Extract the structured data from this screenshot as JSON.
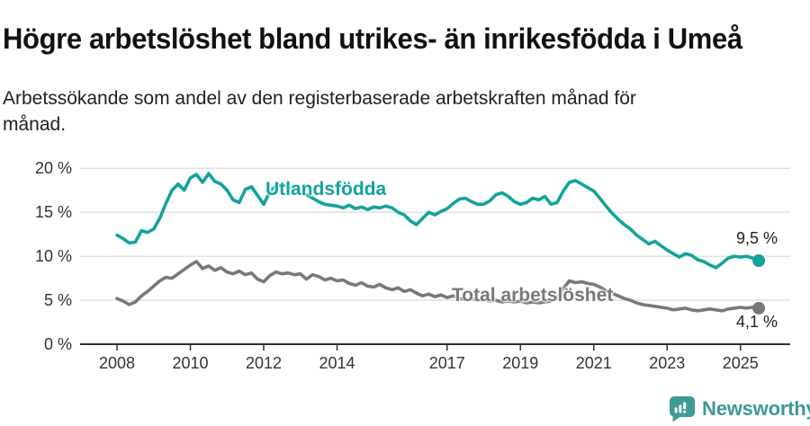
{
  "chart_data": {
    "type": "line",
    "title": "Högre arbetslöshet bland utrikes- än inrikesfödda i Umeå",
    "subtitle": "Arbetssökande som andel av den registerbaserade arbetskraften månad för\nmånad.",
    "xlabel": "",
    "ylabel": "",
    "x_unit": "year (monthly data)",
    "xlim": [
      2007,
      2026.4
    ],
    "ylim": [
      0,
      20.5
    ],
    "grid": "horizontal-only",
    "legend": "inline-labels-on-lines",
    "x_tick_years": [
      2008,
      2010,
      2012,
      2014,
      2017,
      2019,
      2021,
      2023,
      2025
    ],
    "x_tick_labels": [
      "2008",
      "2010",
      "2012",
      "2014",
      "2017",
      "2019",
      "2021",
      "2023",
      "2025"
    ],
    "y_ticks": [
      0,
      5,
      10,
      15,
      20
    ],
    "y_tick_labels": [
      "0 %",
      "5 %",
      "10 %",
      "15 %",
      "20 %"
    ],
    "x_start": 2008.0,
    "x_step": 0.1666667,
    "sampling_note": "values estimated from plot at two-month steps, Jan 2008 - Jun 2025",
    "series": [
      {
        "name": "Utlandsfödda",
        "color": "#12a39a",
        "end_label": "9,5 %",
        "end_value": 9.5,
        "values": [
          12.4,
          12.0,
          11.5,
          11.6,
          12.9,
          12.7,
          13.1,
          14.3,
          16.0,
          17.5,
          18.2,
          17.5,
          18.9,
          19.3,
          18.4,
          19.4,
          18.5,
          18.2,
          17.5,
          16.4,
          16.1,
          17.6,
          17.9,
          16.9,
          15.9,
          17.3,
          18.0,
          18.1,
          17.9,
          17.7,
          17.3,
          17.0,
          16.6,
          16.2,
          15.9,
          15.8,
          15.7,
          15.5,
          15.8,
          15.4,
          15.6,
          15.3,
          15.6,
          15.5,
          15.7,
          15.5,
          15.0,
          14.7,
          14.0,
          13.6,
          14.3,
          15.0,
          14.7,
          15.1,
          15.4,
          16.0,
          16.5,
          16.6,
          16.2,
          15.9,
          15.9,
          16.3,
          17.0,
          17.2,
          16.8,
          16.2,
          15.9,
          16.1,
          16.6,
          16.4,
          16.8,
          15.9,
          16.1,
          17.4,
          18.4,
          18.6,
          18.2,
          17.8,
          17.4,
          16.6,
          15.7,
          14.9,
          14.2,
          13.6,
          13.1,
          12.4,
          11.9,
          11.4,
          11.7,
          11.2,
          10.7,
          10.3,
          9.9,
          10.3,
          10.1,
          9.6,
          9.4,
          9.0,
          8.7,
          9.2,
          9.8,
          10.0,
          9.9,
          10.0,
          9.8,
          9.5
        ]
      },
      {
        "name": "Total arbetslöshet",
        "color": "#787878",
        "end_label": "4,1 %",
        "end_value": 4.1,
        "values": [
          5.2,
          4.9,
          4.5,
          4.8,
          5.5,
          6.0,
          6.6,
          7.2,
          7.6,
          7.5,
          8.0,
          8.5,
          9.0,
          9.4,
          8.6,
          8.9,
          8.4,
          8.7,
          8.2,
          8.0,
          8.3,
          7.9,
          8.1,
          7.4,
          7.1,
          7.8,
          8.2,
          8.0,
          8.1,
          7.9,
          8.0,
          7.4,
          7.9,
          7.7,
          7.3,
          7.5,
          7.2,
          7.3,
          6.9,
          6.7,
          7.0,
          6.6,
          6.5,
          6.8,
          6.4,
          6.2,
          6.4,
          6.0,
          6.2,
          5.8,
          5.5,
          5.7,
          5.4,
          5.6,
          5.3,
          5.5,
          5.2,
          5.1,
          5.2,
          5.0,
          5.1,
          4.9,
          5.0,
          4.8,
          4.9,
          4.8,
          4.9,
          4.7,
          4.8,
          4.7,
          4.8,
          4.9,
          5.2,
          6.3,
          7.2,
          7.0,
          7.1,
          6.9,
          6.8,
          6.5,
          6.1,
          5.8,
          5.5,
          5.2,
          5.0,
          4.7,
          4.5,
          4.4,
          4.3,
          4.2,
          4.1,
          3.9,
          4.0,
          4.1,
          3.9,
          3.8,
          3.9,
          4.0,
          3.9,
          3.8,
          4.0,
          4.1,
          4.2,
          4.1,
          4.2,
          4.1
        ]
      }
    ]
  },
  "colors": {
    "axis": "#2f2f2f",
    "tick_text": "#333333",
    "gridline": "#e0e0e0",
    "title_text": "#111111",
    "subtitle_text": "#212121",
    "brand_teal": "#3d9a94"
  },
  "footer": {
    "brand": "Newsworthy",
    "logo_icon": "newsworthy-speech-bubble-bar-chart-icon"
  }
}
